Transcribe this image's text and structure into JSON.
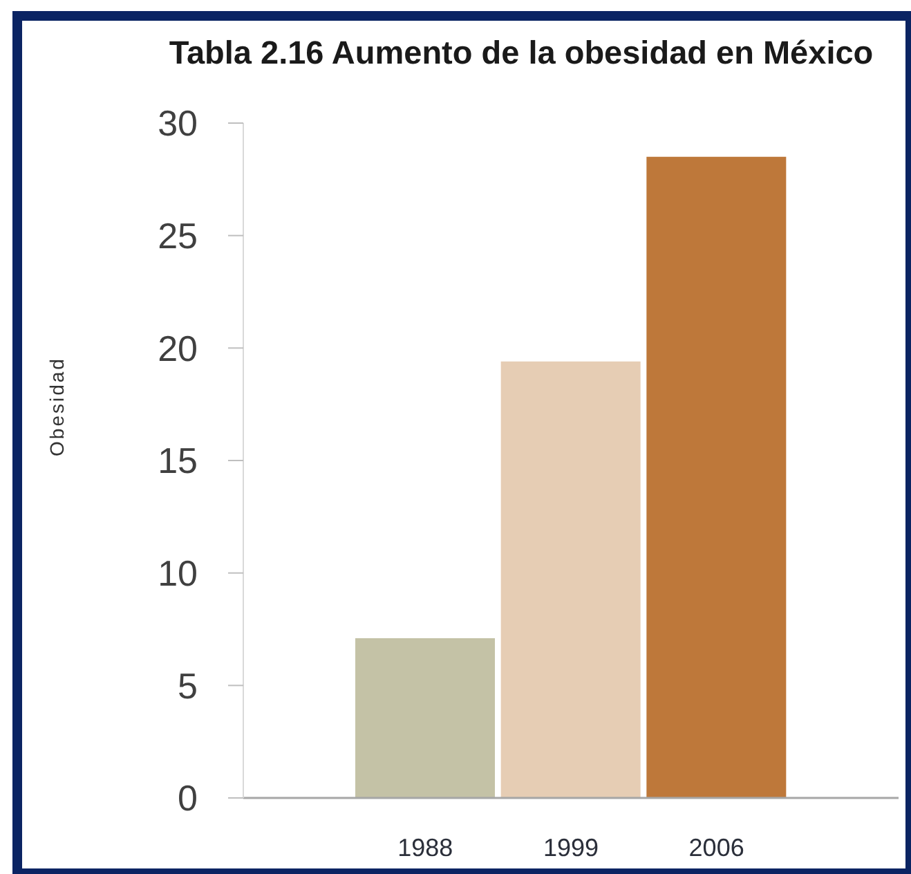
{
  "chart_data": {
    "type": "bar",
    "title": "Tabla 2.16 Aumento de la obesidad en México",
    "ylabel": "Obesidad",
    "categories": [
      "1988",
      "1999",
      "2006"
    ],
    "values": [
      7.1,
      19.4,
      28.5
    ],
    "colors": [
      "#c4c2a6",
      "#e6cdb4",
      "#be783a"
    ],
    "ylim": [
      0,
      30
    ],
    "yticks": [
      0,
      5,
      10,
      15,
      20,
      25,
      30
    ]
  }
}
